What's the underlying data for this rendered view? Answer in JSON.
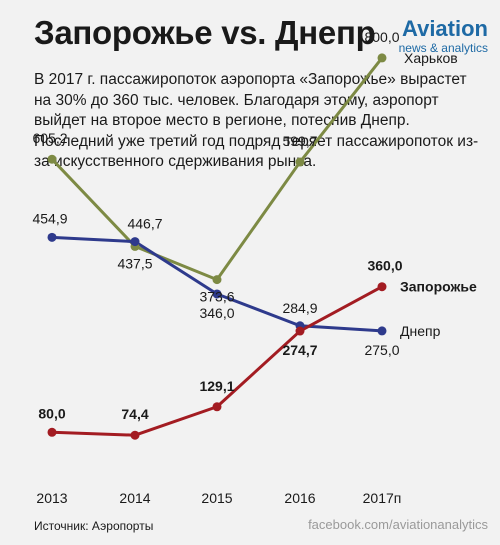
{
  "header": {
    "title": "Запорожье vs. Днепр",
    "brand_name": "Aviation",
    "brand_sub": "news & analytics"
  },
  "lead_text": "В 2017 г.  пассажиропоток аэропорта «Запорожье» вырастет на 30% до 360 тыс. человек. Благодаря этому, аэропорт выйдет на второе место в регионе, потеснив Днепр. Последний уже третий год подряд теряет пассажиропоток из-за искусственного сдерживания рынка.",
  "footer": {
    "source": "Источник: Аэропорты",
    "link": "facebook.com/aviationanalytics"
  },
  "chart_data": {
    "type": "line",
    "categories": [
      "2013",
      "2014",
      "2015",
      "2016",
      "2017п"
    ],
    "ylim": [
      0,
      900
    ],
    "grid": false,
    "legend": "none",
    "series": [
      {
        "name": "Харьков",
        "color": "#7d8a44",
        "values": [
          605.2,
          437.5,
          373.6,
          599.7,
          800.0
        ],
        "labels": [
          "605,2",
          "437,5",
          "373,6",
          "599,7",
          "800,0"
        ],
        "bold": false
      },
      {
        "name": "Днепр",
        "color": "#2e3a8c",
        "values": [
          454.9,
          446.7,
          346.0,
          284.9,
          275.0
        ],
        "labels": [
          "454,9",
          "446,7",
          "346,0",
          "284,9",
          "275,0"
        ],
        "bold": false
      },
      {
        "name": "Запорожье",
        "color": "#a31c22",
        "values": [
          80.0,
          74.4,
          129.1,
          274.7,
          360.0
        ],
        "labels": [
          "80,0",
          "74,4",
          "129,1",
          "274,7",
          "360,0"
        ],
        "bold": true
      }
    ]
  }
}
